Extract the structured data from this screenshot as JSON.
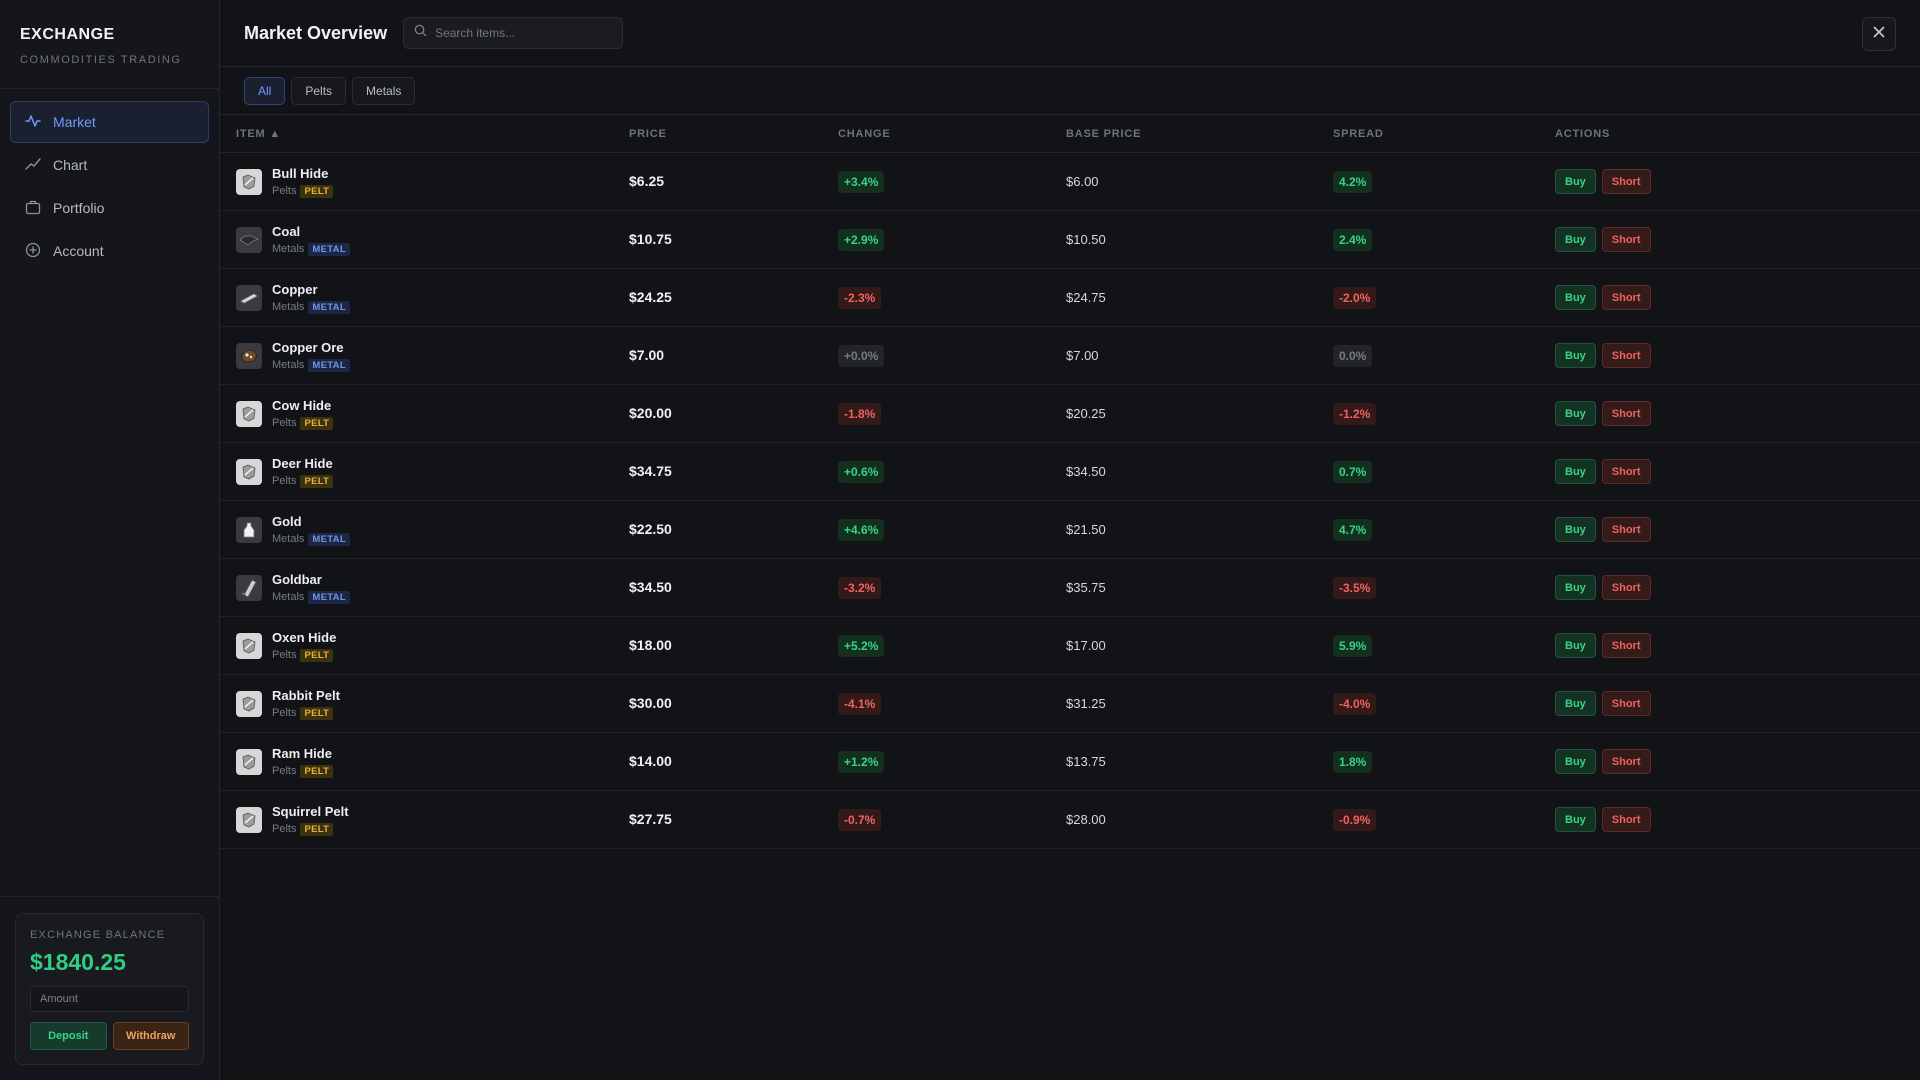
{
  "sidebar": {
    "brand_title": "EXCHANGE",
    "brand_subtitle": "COMMODITIES TRADING",
    "nav": [
      {
        "label": "Market",
        "icon": "activity-icon",
        "active": true
      },
      {
        "label": "Chart",
        "icon": "trending-up-icon",
        "active": false
      },
      {
        "label": "Portfolio",
        "icon": "briefcase-icon",
        "active": false
      },
      {
        "label": "Account",
        "icon": "plus-circle-icon",
        "active": false
      }
    ],
    "balance": {
      "label": "EXCHANGE BALANCE",
      "value": "$1840.25",
      "amount_placeholder": "Amount",
      "deposit_label": "Deposit",
      "withdraw_label": "Withdraw"
    }
  },
  "header": {
    "title": "Market Overview",
    "search_placeholder": "Search items..."
  },
  "filters": [
    {
      "label": "All",
      "active": true
    },
    {
      "label": "Pelts",
      "active": false
    },
    {
      "label": "Metals",
      "active": false
    }
  ],
  "table": {
    "columns": {
      "item": "ITEM ▲",
      "price": "PRICE",
      "change": "CHANGE",
      "base_price": "BASE PRICE",
      "spread": "SPREAD",
      "actions": "ACTIONS"
    },
    "buy_label": "Buy",
    "short_label": "Short",
    "rows": [
      {
        "name": "Bull Hide",
        "category": "Pelts",
        "tag": "PELT",
        "price": "$6.25",
        "change": "+3.4%",
        "change_dir": "pos",
        "base": "$6.00",
        "spread": "4.2%",
        "spread_dir": "pos"
      },
      {
        "name": "Coal",
        "category": "Metals",
        "tag": "METAL",
        "price": "$10.75",
        "change": "+2.9%",
        "change_dir": "pos",
        "base": "$10.50",
        "spread": "2.4%",
        "spread_dir": "pos"
      },
      {
        "name": "Copper",
        "category": "Metals",
        "tag": "METAL",
        "price": "$24.25",
        "change": "-2.3%",
        "change_dir": "neg",
        "base": "$24.75",
        "spread": "-2.0%",
        "spread_dir": "neg"
      },
      {
        "name": "Copper Ore",
        "category": "Metals",
        "tag": "METAL",
        "price": "$7.00",
        "change": "+0.0%",
        "change_dir": "neu",
        "base": "$7.00",
        "spread": "0.0%",
        "spread_dir": "neu"
      },
      {
        "name": "Cow Hide",
        "category": "Pelts",
        "tag": "PELT",
        "price": "$20.00",
        "change": "-1.8%",
        "change_dir": "neg",
        "base": "$20.25",
        "spread": "-1.2%",
        "spread_dir": "neg"
      },
      {
        "name": "Deer Hide",
        "category": "Pelts",
        "tag": "PELT",
        "price": "$34.75",
        "change": "+0.6%",
        "change_dir": "pos",
        "base": "$34.50",
        "spread": "0.7%",
        "spread_dir": "pos"
      },
      {
        "name": "Gold",
        "category": "Metals",
        "tag": "METAL",
        "price": "$22.50",
        "change": "+4.6%",
        "change_dir": "pos",
        "base": "$21.50",
        "spread": "4.7%",
        "spread_dir": "pos"
      },
      {
        "name": "Goldbar",
        "category": "Metals",
        "tag": "METAL",
        "price": "$34.50",
        "change": "-3.2%",
        "change_dir": "neg",
        "base": "$35.75",
        "spread": "-3.5%",
        "spread_dir": "neg"
      },
      {
        "name": "Oxen Hide",
        "category": "Pelts",
        "tag": "PELT",
        "price": "$18.00",
        "change": "+5.2%",
        "change_dir": "pos",
        "base": "$17.00",
        "spread": "5.9%",
        "spread_dir": "pos"
      },
      {
        "name": "Rabbit Pelt",
        "category": "Pelts",
        "tag": "PELT",
        "price": "$30.00",
        "change": "-4.1%",
        "change_dir": "neg",
        "base": "$31.25",
        "spread": "-4.0%",
        "spread_dir": "neg"
      },
      {
        "name": "Ram Hide",
        "category": "Pelts",
        "tag": "PELT",
        "price": "$14.00",
        "change": "+1.2%",
        "change_dir": "pos",
        "base": "$13.75",
        "spread": "1.8%",
        "spread_dir": "pos"
      },
      {
        "name": "Squirrel Pelt",
        "category": "Pelts",
        "tag": "PELT",
        "price": "$27.75",
        "change": "-0.7%",
        "change_dir": "neg",
        "base": "$28.00",
        "spread": "-0.9%",
        "spread_dir": "neg"
      }
    ]
  },
  "colors": {
    "accent": "#6e9bff",
    "positive": "#37d48a",
    "negative": "#f06262",
    "pelt_tag": "#e3b13c",
    "metal_tag": "#7393e6"
  }
}
